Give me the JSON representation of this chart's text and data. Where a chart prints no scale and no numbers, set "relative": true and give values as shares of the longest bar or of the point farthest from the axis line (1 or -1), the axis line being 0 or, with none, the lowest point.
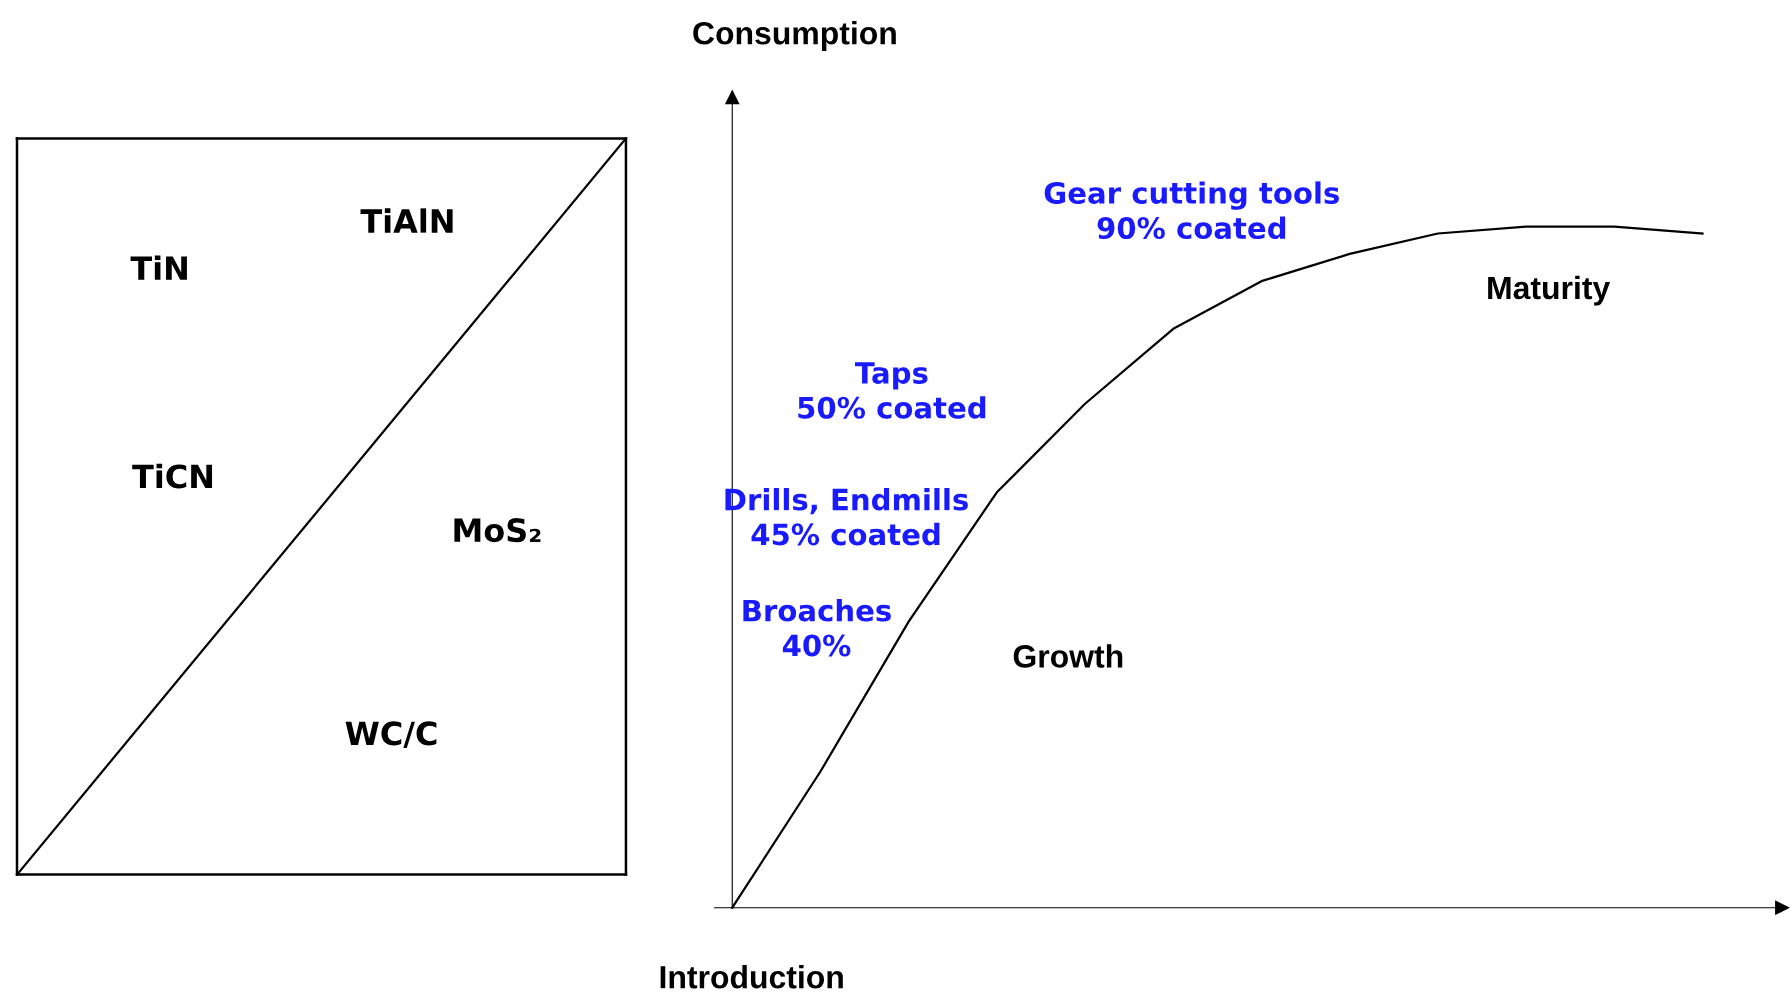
{
  "chart_data": [
    {
      "type": "other",
      "annotations": [
        "TiN",
        "TiAlN",
        "TiCN",
        "MoS₂",
        "WC/C"
      ]
    },
    {
      "type": "line",
      "relative": true,
      "ylabel": "Consumption",
      "categories": [
        null,
        null,
        null,
        null,
        null,
        null,
        null,
        null,
        null,
        null,
        null,
        null
      ],
      "series": [
        {
          "color": "#000000",
          "values": [
            0,
            0.2,
            0.42,
            0.61,
            0.74,
            0.85,
            0.92,
            0.96,
            0.99,
            1.0,
            1.0,
            0.99
          ]
        }
      ],
      "annotations": [
        "Gear cutting tools\n90% coated",
        "Maturity",
        "Taps\n50% coated",
        "Drills, Endmills\n45% coated",
        "Broaches\n40%",
        "Growth",
        "Introduction"
      ]
    }
  ]
}
